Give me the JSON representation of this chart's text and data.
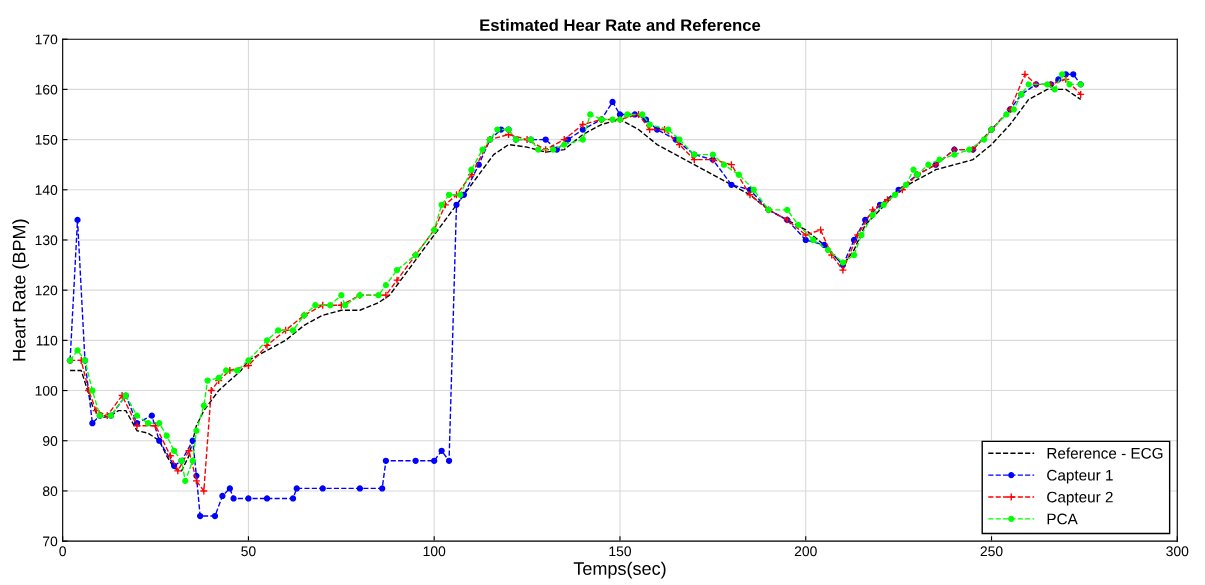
{
  "chart_data": {
    "type": "line",
    "title": "Estimated Hear Rate and Reference",
    "xlabel": "Temps(sec)",
    "ylabel": "Heart Rate (BPM)",
    "xlim": [
      0,
      300
    ],
    "xticks": [
      0,
      50,
      100,
      150,
      200,
      250,
      300
    ],
    "ylim": [
      70,
      170
    ],
    "yticks": [
      70,
      80,
      90,
      100,
      110,
      120,
      130,
      140,
      150,
      160,
      170
    ],
    "grid": true,
    "legend": "bottom right",
    "line_style": "dashed",
    "series": [
      {
        "name": "Reference - ECG",
        "color": "#000000",
        "marker": "none",
        "x": [
          2,
          5,
          8,
          10,
          13,
          15,
          17,
          20,
          23,
          26,
          28,
          30,
          32,
          34,
          36,
          38,
          40,
          42,
          45,
          48,
          50,
          55,
          60,
          65,
          70,
          75,
          80,
          85,
          88,
          92,
          96,
          100,
          104,
          108,
          112,
          116,
          120,
          125,
          130,
          135,
          140,
          145,
          150,
          155,
          160,
          165,
          170,
          175,
          180,
          185,
          190,
          195,
          200,
          205,
          210,
          213,
          216,
          220,
          225,
          230,
          235,
          240,
          245,
          250,
          255,
          260,
          265,
          270,
          274
        ],
        "values": [
          104,
          104,
          97,
          94.5,
          95,
          96,
          96,
          92,
          91.5,
          90,
          87,
          84.5,
          84,
          87,
          93,
          96,
          98,
          100,
          102,
          104,
          106,
          108,
          110,
          113,
          115,
          116,
          116,
          117.5,
          119,
          123,
          127,
          131,
          135,
          139,
          143,
          147,
          149,
          148.5,
          147.5,
          148,
          151,
          153,
          154,
          152,
          149,
          147,
          145,
          143,
          141,
          139,
          136,
          134,
          132,
          129,
          125,
          128,
          133,
          136,
          140,
          142,
          144,
          145,
          146,
          149,
          153,
          158,
          160,
          160,
          158
        ]
      },
      {
        "name": "Capteur 1",
        "color": "#0000ff",
        "marker": "circle",
        "x": [
          2,
          4,
          6,
          8,
          10,
          13,
          17,
          20,
          24,
          26,
          30,
          32,
          35,
          36,
          37,
          41,
          43,
          45,
          46,
          50,
          55,
          62,
          63,
          70,
          80,
          86,
          87,
          95,
          100,
          102,
          104,
          106,
          108,
          112,
          115,
          118,
          120,
          122,
          126,
          130,
          133,
          136,
          140,
          145,
          148,
          150,
          154,
          157,
          160,
          165,
          170,
          175,
          180,
          185,
          190,
          195,
          200,
          205,
          210,
          213,
          216,
          220,
          225,
          230,
          235,
          240,
          245,
          250,
          255,
          258,
          262,
          266,
          268,
          270,
          272,
          274
        ],
        "values": [
          106,
          134,
          106,
          93.5,
          95,
          95,
          99,
          93.5,
          95,
          90,
          85,
          86,
          90,
          83,
          75,
          75,
          79,
          80.5,
          78.5,
          78.5,
          78.5,
          78.5,
          80.5,
          80.5,
          80.5,
          80.5,
          86,
          86,
          86,
          88,
          86,
          137,
          139,
          145,
          150,
          152,
          152,
          150,
          150,
          150,
          148,
          150,
          152,
          154,
          157.5,
          155,
          155,
          154,
          152,
          150,
          147,
          146,
          141,
          140,
          136,
          134,
          130,
          129,
          125,
          130,
          134,
          137,
          140,
          143,
          145,
          148,
          148,
          152,
          156,
          159,
          161,
          161,
          162,
          163,
          163,
          161
        ]
      },
      {
        "name": "Capteur 2",
        "color": "#ff0000",
        "marker": "cross",
        "x": [
          2,
          5,
          7,
          9,
          12,
          16,
          20,
          25,
          29,
          31,
          34,
          36,
          38,
          40,
          42,
          45,
          50,
          55,
          60,
          65,
          70,
          75,
          80,
          87,
          90,
          95,
          100,
          103,
          106,
          110,
          115,
          120,
          125,
          130,
          135,
          140,
          145,
          150,
          155,
          158,
          162,
          166,
          170,
          175,
          180,
          185,
          190,
          195,
          200,
          204,
          207,
          210,
          214,
          218,
          222,
          226,
          230,
          235,
          240,
          245,
          250,
          255,
          259,
          262,
          266,
          270,
          274
        ],
        "values": [
          106,
          106,
          100,
          96,
          95,
          99,
          93,
          93,
          87,
          84,
          88,
          82,
          80,
          100,
          102,
          104,
          105,
          109,
          112,
          115,
          117,
          117,
          119,
          119,
          122,
          127,
          132,
          137,
          139,
          143,
          150,
          151,
          150,
          148,
          150,
          153,
          154,
          154,
          155,
          152,
          152,
          149,
          146,
          146,
          145,
          139,
          136,
          134,
          131,
          132,
          127,
          124,
          131,
          136,
          138,
          140,
          143,
          145,
          148,
          148,
          152,
          156,
          163,
          161,
          161,
          162,
          159
        ]
      },
      {
        "name": "PCA",
        "color": "#00ff00",
        "marker": "circle",
        "x": [
          2,
          4,
          6,
          8,
          10,
          13,
          17,
          20,
          23,
          26,
          28,
          30,
          32,
          33,
          35,
          36,
          38,
          39,
          42,
          44,
          47,
          50,
          55,
          58,
          62,
          65,
          68,
          72,
          75,
          76,
          80,
          85,
          87,
          90,
          95,
          100,
          102,
          104,
          107,
          110,
          113,
          115,
          117,
          120,
          122,
          126,
          128,
          132,
          135,
          140,
          142,
          145,
          148,
          150,
          152,
          156,
          158,
          163,
          166,
          170,
          175,
          178,
          182,
          186,
          190,
          195,
          198,
          202,
          206,
          210,
          213,
          215,
          218,
          221,
          224,
          227,
          229,
          230,
          233,
          236,
          240,
          244,
          248,
          250,
          254,
          256,
          258,
          260,
          265,
          267,
          269,
          271,
          274
        ],
        "values": [
          106,
          108,
          106,
          100,
          95,
          95,
          99,
          95,
          93.5,
          93.5,
          91,
          88,
          86,
          82,
          86,
          92,
          97,
          102,
          102.5,
          104,
          104,
          106,
          110,
          112,
          112,
          115,
          117,
          117,
          119,
          117,
          119,
          119,
          121,
          124,
          127,
          132,
          137,
          139,
          139,
          144,
          148,
          150,
          152,
          152,
          150,
          150,
          148,
          148,
          149,
          150,
          155,
          154,
          154,
          154,
          155,
          155,
          153,
          152,
          150,
          147,
          147,
          145,
          143,
          140,
          136,
          136,
          133,
          130,
          128,
          125.5,
          127,
          131,
          135,
          137,
          139,
          141,
          144,
          143,
          145,
          146,
          147,
          148,
          150,
          152,
          155,
          156,
          159,
          161,
          161,
          160,
          163,
          161,
          161
        ]
      }
    ]
  }
}
